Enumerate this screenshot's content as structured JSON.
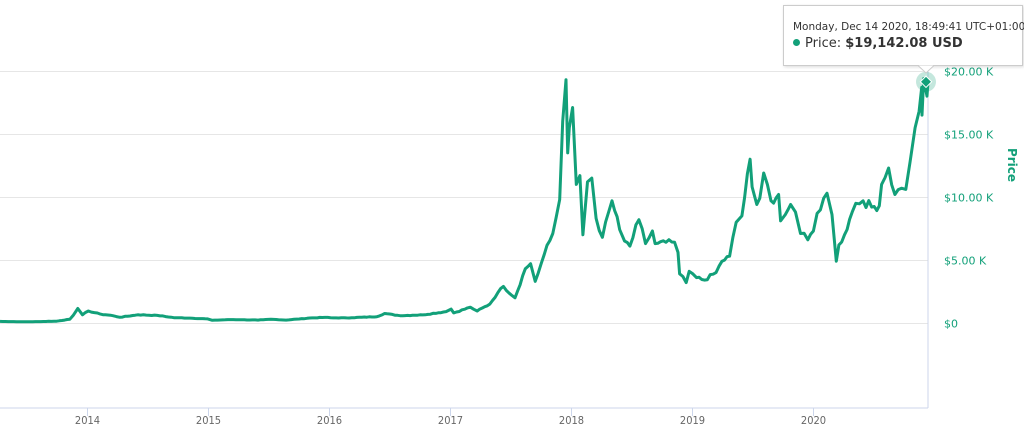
{
  "chart_data": {
    "type": "line",
    "title": "",
    "xlabel": "",
    "ylabel": "Price",
    "xlim": [
      "2013-04-13",
      "2020-12-14"
    ],
    "ylim": [
      -6750,
      25000
    ],
    "grid": true,
    "legend": "none",
    "y_axis_side": "right",
    "x_ticks": [
      "2014",
      "2015",
      "2016",
      "2017",
      "2018",
      "2019",
      "2020"
    ],
    "y_ticks": [
      {
        "value": 0,
        "label": "$0"
      },
      {
        "value": 5000,
        "label": "$5.00 K"
      },
      {
        "value": 10000,
        "label": "$10.00 K"
      },
      {
        "value": 15000,
        "label": "$15.00 K"
      },
      {
        "value": 20000,
        "label": "$20.00 K"
      }
    ],
    "colors": {
      "line": "#12a079",
      "grid": "#e6e6e6",
      "axis": "#ccd6eb"
    },
    "series": [
      {
        "x": [
          "2013-04-13",
          "2013-07-05",
          "2013-10-01",
          "2013-11-10",
          "2013-11-20",
          "2013-12-04",
          "2013-12-18",
          "2014-01-05",
          "2014-02-10",
          "2014-03-20",
          "2014-04-10",
          "2014-06-03",
          "2014-08-01",
          "2014-09-20",
          "2014-11-15",
          "2014-12-31",
          "2015-01-14",
          "2015-03-10",
          "2015-06-01",
          "2015-07-10",
          "2015-08-25",
          "2015-11-04",
          "2015-12-20",
          "2016-01-15",
          "2016-03-10",
          "2016-05-25",
          "2016-06-17",
          "2016-08-03",
          "2016-10-10",
          "2016-12-20",
          "2017-01-04",
          "2017-01-12",
          "2017-03-03",
          "2017-03-24",
          "2017-05-01",
          "2017-05-25",
          "2017-06-11",
          "2017-07-16",
          "2017-08-16",
          "2017-09-01",
          "2017-09-15",
          "2017-10-12",
          "2017-11-07",
          "2017-11-28",
          "2017-12-07",
          "2017-12-17",
          "2017-12-22",
          "2017-12-27",
          "2018-01-06",
          "2018-01-17",
          "2018-01-28",
          "2018-02-06",
          "2018-02-20",
          "2018-03-05",
          "2018-03-18",
          "2018-04-06",
          "2018-05-05",
          "2018-05-28",
          "2018-06-12",
          "2018-06-28",
          "2018-07-25",
          "2018-08-14",
          "2018-09-04",
          "2018-09-12",
          "2018-10-15",
          "2018-11-10",
          "2018-11-20",
          "2018-11-25",
          "2018-12-15",
          "2018-12-24",
          "2019-01-15",
          "2019-02-08",
          "2019-03-15",
          "2019-04-02",
          "2019-04-25",
          "2019-05-15",
          "2019-06-01",
          "2019-06-26",
          "2019-07-02",
          "2019-07-16",
          "2019-07-25",
          "2019-08-06",
          "2019-08-28",
          "2019-09-20",
          "2019-09-26",
          "2019-10-10",
          "2019-10-26",
          "2019-11-10",
          "2019-11-25",
          "2019-12-17",
          "2020-01-03",
          "2020-01-14",
          "2020-02-13",
          "2020-02-28",
          "2020-03-12",
          "2020-03-20",
          "2020-04-06",
          "2020-04-29",
          "2020-05-10",
          "2020-06-01",
          "2020-06-27",
          "2020-07-20",
          "2020-07-27",
          "2020-08-17",
          "2020-09-05",
          "2020-09-25",
          "2020-10-08",
          "2020-10-21",
          "2020-11-05",
          "2020-11-17",
          "2020-11-25",
          "2020-11-26",
          "2020-12-01",
          "2020-12-11",
          "2020-12-14"
        ],
        "values": [
          120,
          90,
          140,
          300,
          600,
          1150,
          650,
          950,
          700,
          580,
          450,
          650,
          600,
          420,
          380,
          320,
          210,
          270,
          230,
          290,
          230,
          390,
          440,
          400,
          415,
          500,
          750,
          580,
          640,
          900,
          1100,
          800,
          1250,
          950,
          1500,
          2400,
          2900,
          2000,
          4300,
          4700,
          3300,
          5400,
          7100,
          9800,
          16000,
          19300,
          13500,
          15500,
          17100,
          11000,
          11700,
          7000,
          11200,
          11500,
          8300,
          6800,
          9700,
          7400,
          6500,
          6100,
          8200,
          6300,
          7300,
          6300,
          6400,
          6400,
          5600,
          3900,
          3200,
          4100,
          3600,
          3400,
          4000,
          4900,
          5300,
          8000,
          8500,
          13000,
          10800,
          9400,
          9900,
          11900,
          9700,
          10200,
          8100,
          8600,
          9400,
          8800,
          7100,
          6600,
          7300,
          8700,
          10300,
          8600,
          4900,
          6200,
          7000,
          8800,
          9500,
          9700,
          9200,
          9300,
          11000,
          12300,
          10200,
          10700,
          10600,
          12800,
          15500,
          16800,
          18700,
          16500,
          19400,
          18000,
          19142.08
        ]
      }
    ]
  },
  "tooltip": {
    "date": "Monday, Dec 14 2020, 18:49:41 UTC+01:00",
    "series_label": "Price:",
    "value": "$19,142.08 USD"
  }
}
